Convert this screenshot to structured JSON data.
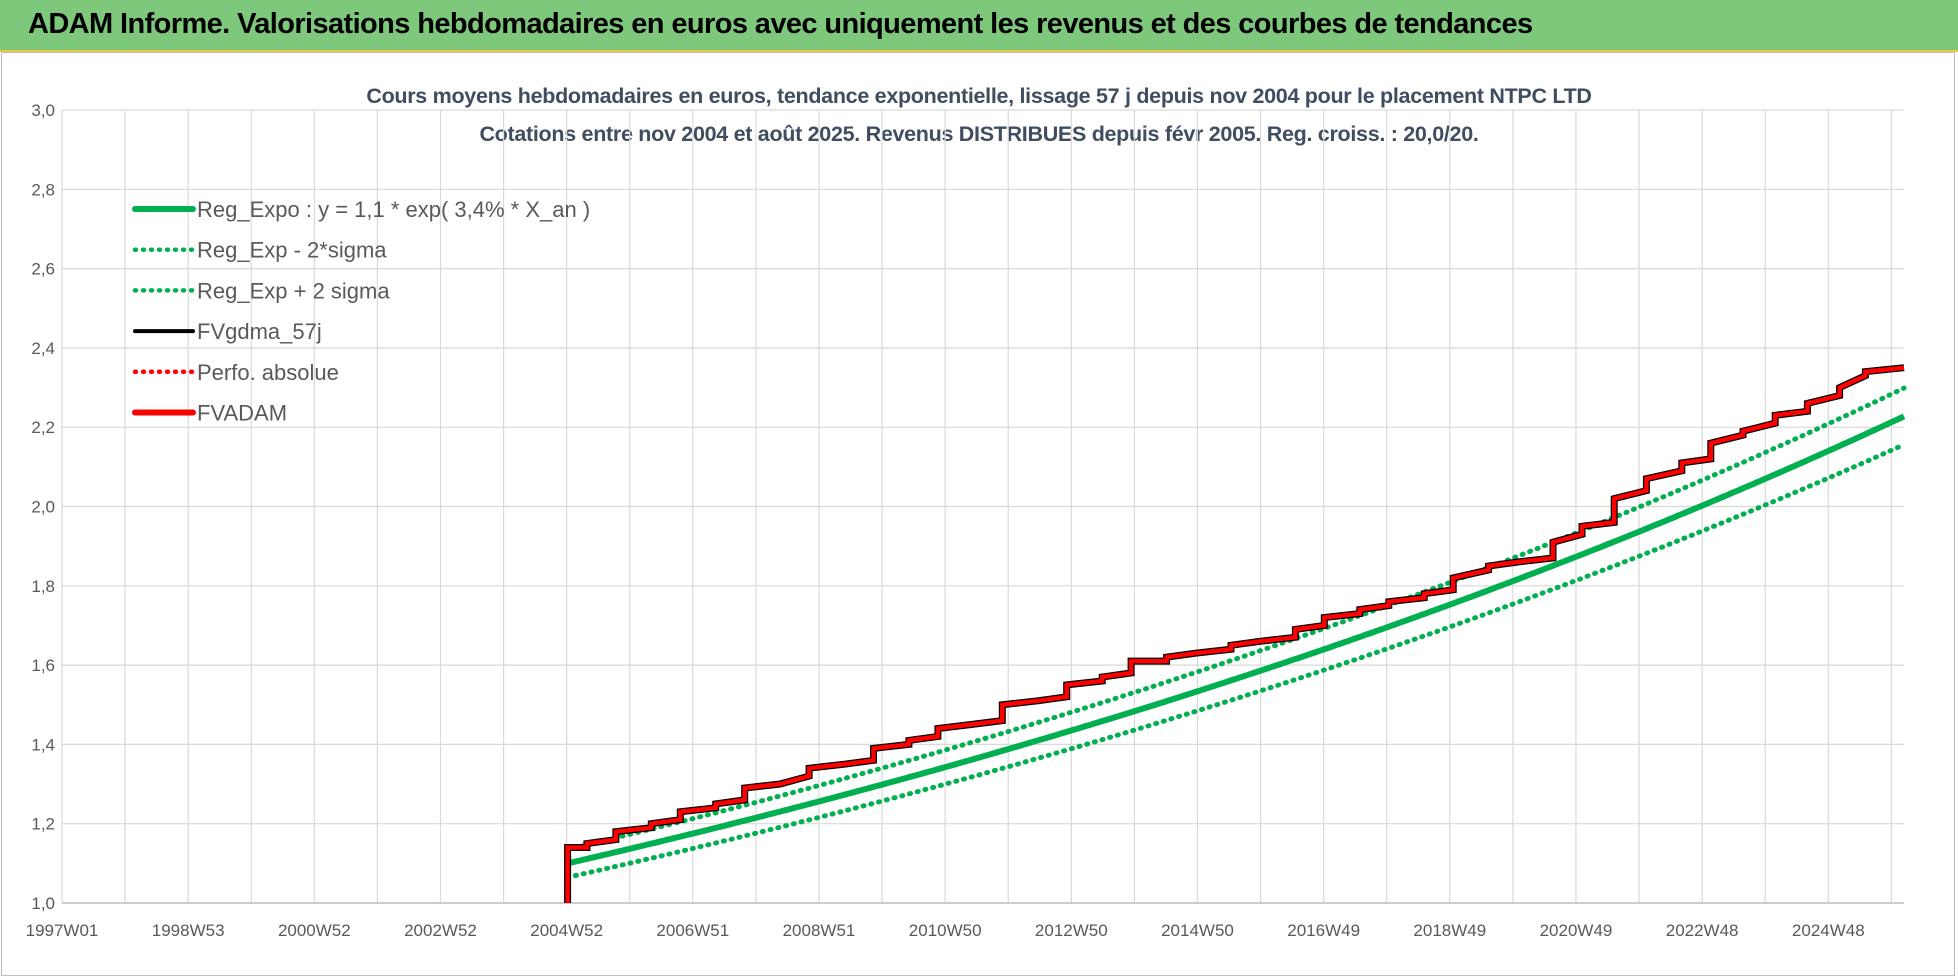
{
  "banner": {
    "title": "ADAM Informe. Valorisations hebdomadaires en euros avec uniquement les revenus et des courbes de tendances"
  },
  "chart_data": {
    "type": "line",
    "title_line1": "Cours moyens hebdomadaires en euros, tendance exponentielle, lissage 57 j depuis nov 2004 pour le placement NTPC LTD",
    "title_line2": "Cotations entre nov 2004 et août 2025. Revenus DISTRIBUES depuis févr 2005. Reg. croiss. : 20,0/20.",
    "xlabel": "",
    "ylabel": "",
    "ylim": [
      1.0,
      3.0
    ],
    "y_ticks": [
      "1,0",
      "1,2",
      "1,4",
      "1,6",
      "1,8",
      "2,0",
      "2,2",
      "2,4",
      "2,6",
      "2,8",
      "3,0"
    ],
    "xlim": [
      1997.0,
      2025.6
    ],
    "x_tick_labels": [
      "1997W01",
      "1998W53",
      "2000W52",
      "2002W52",
      "2004W52",
      "2006W51",
      "2008W51",
      "2010W50",
      "2012W50",
      "2014W50",
      "2016W49",
      "2018W49",
      "2020W49",
      "2022W48",
      "2024W48"
    ],
    "grid": true,
    "legend_position": "top-left",
    "legend": [
      {
        "label": "Reg_Expo : y = 1,1 * exp( 3,4% *  X_an )",
        "color": "#00b050",
        "style": "solid"
      },
      {
        "label": "Reg_Exp - 2*sigma",
        "color": "#00b050",
        "style": "dotted"
      },
      {
        "label": "Reg_Exp + 2 sigma",
        "color": "#00b050",
        "style": "dotted"
      },
      {
        "label": "FVgdma_57j",
        "color": "#000000",
        "style": "solid"
      },
      {
        "label": "Perfo. absolue",
        "color": "#ff0000",
        "style": "dotted"
      },
      {
        "label": "FVADAM",
        "color": "#ff0000",
        "style": "solid"
      }
    ],
    "regression": {
      "start_year": 2004.85,
      "end_year": 2025.6,
      "a": 1.1,
      "rate": 0.034,
      "sigma_band_low": 0.968,
      "sigma_band_high": 1.032
    },
    "series_fvadam": {
      "x": [
        2004.85,
        2004.85,
        2004.85,
        2005.15,
        2005.15,
        2005.6,
        2005.6,
        2006.15,
        2006.15,
        2006.6,
        2006.6,
        2007.15,
        2007.15,
        2007.6,
        2007.6,
        2008.15,
        2008.15,
        2008.6,
        2008.6,
        2009.15,
        2009.15,
        2009.6,
        2009.6,
        2010.15,
        2010.15,
        2010.6,
        2010.6,
        2011.1,
        2011.1,
        2011.6,
        2011.6,
        2012.15,
        2012.15,
        2012.6,
        2012.6,
        2013.15,
        2013.15,
        2013.6,
        2013.6,
        2014.15,
        2014.15,
        2014.6,
        2014.6,
        2015.15,
        2015.15,
        2015.6,
        2015.6,
        2016.15,
        2016.15,
        2016.6,
        2016.6,
        2017.15,
        2017.15,
        2017.6,
        2017.6,
        2018.15,
        2018.15,
        2018.6,
        2018.6,
        2019.15,
        2019.15,
        2019.6,
        2019.6,
        2020.15,
        2020.15,
        2020.6,
        2020.6,
        2021.1,
        2021.1,
        2021.6,
        2021.6,
        2022.15,
        2022.15,
        2022.6,
        2022.6,
        2023.1,
        2023.1,
        2023.6,
        2023.6,
        2024.1,
        2024.1,
        2024.6,
        2024.6,
        2025.0,
        2025.0,
        2025.6
      ],
      "y": [
        1.0,
        1.13,
        1.14,
        1.14,
        1.15,
        1.16,
        1.18,
        1.19,
        1.2,
        1.21,
        1.23,
        1.24,
        1.25,
        1.26,
        1.29,
        1.3,
        1.3,
        1.32,
        1.34,
        1.35,
        1.35,
        1.36,
        1.39,
        1.4,
        1.41,
        1.42,
        1.44,
        1.45,
        1.45,
        1.46,
        1.5,
        1.51,
        1.51,
        1.52,
        1.55,
        1.56,
        1.57,
        1.58,
        1.61,
        1.61,
        1.62,
        1.63,
        1.63,
        1.64,
        1.65,
        1.66,
        1.66,
        1.67,
        1.69,
        1.7,
        1.72,
        1.73,
        1.74,
        1.75,
        1.76,
        1.77,
        1.78,
        1.79,
        1.82,
        1.84,
        1.85,
        1.86,
        1.86,
        1.87,
        1.91,
        1.93,
        1.95,
        1.96,
        2.02,
        2.04,
        2.07,
        2.09,
        2.11,
        2.12,
        2.16,
        2.18,
        2.19,
        2.21,
        2.23,
        2.24,
        2.26,
        2.28,
        2.3,
        2.33,
        2.34,
        2.35
      ]
    }
  }
}
